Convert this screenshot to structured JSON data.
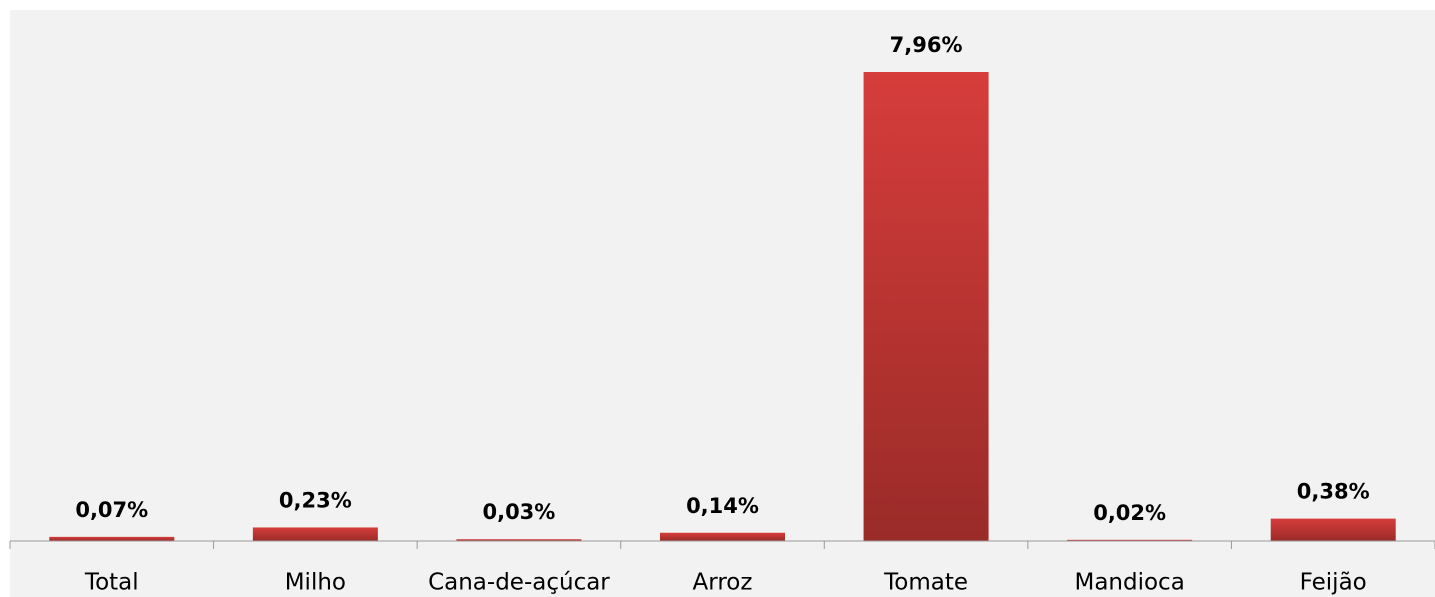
{
  "chart_data": {
    "type": "bar",
    "categories": [
      "Total",
      "Milho",
      "Cana-de-açúcar",
      "Arroz",
      "Tomate",
      "Mandioca",
      "Feijão"
    ],
    "values": [
      0.07,
      0.23,
      0.03,
      0.14,
      7.96,
      0.02,
      0.38
    ],
    "value_labels": [
      "0,07%",
      "0,23%",
      "0,03%",
      "0,14%",
      "7,96%",
      "0,02%",
      "0,38%"
    ],
    "color": "#d23c3a"
  }
}
